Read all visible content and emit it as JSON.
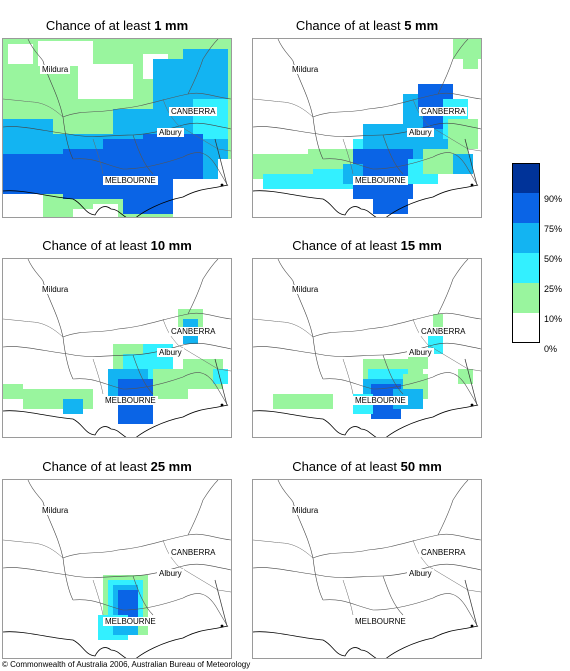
{
  "panels": [
    {
      "prefix": "Chance of at least ",
      "amount": "1 mm",
      "level": 0
    },
    {
      "prefix": "Chance of at least ",
      "amount": "5 mm",
      "level": 1
    },
    {
      "prefix": "Chance of at least ",
      "amount": "10 mm",
      "level": 2
    },
    {
      "prefix": "Chance of at least ",
      "amount": "15 mm",
      "level": 3
    },
    {
      "prefix": "Chance of at least ",
      "amount": "25 mm",
      "level": 4
    },
    {
      "prefix": "Chance of at least ",
      "amount": "50 mm",
      "level": 5
    }
  ],
  "places": {
    "mildura": "Mildura",
    "canberra": "CANBERRA",
    "albury": "Albury",
    "melbourne": "MELBOURNE"
  },
  "legend": {
    "ticks": [
      "90%",
      "75%",
      "50%",
      "25%",
      "10%",
      "0%"
    ],
    "colors": [
      "#003399",
      "#0a64e6",
      "#13b4f2",
      "#33f0ff",
      "#99f59e",
      "#ffffff"
    ]
  },
  "copyright": "© Commonwealth of Australia 2006, Australian Bureau of Meteorology"
}
